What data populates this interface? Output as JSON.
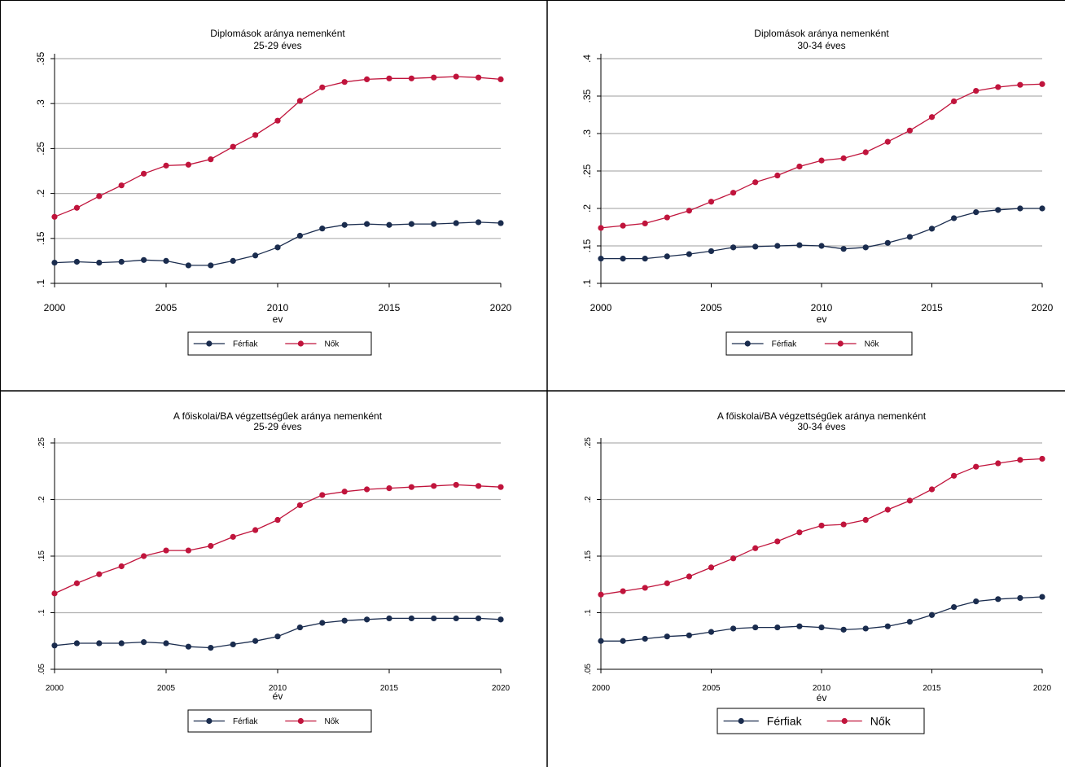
{
  "colors": {
    "men": "#1a2c4e",
    "women": "#c0143c",
    "grid": "#b0b0b0"
  },
  "chart_data": [
    {
      "type": "line",
      "title": "Diplomások aránya nemenként",
      "subtitle": "25-29 éves",
      "xlabel": "ev",
      "ylabel": "",
      "xlim": [
        2000,
        2020
      ],
      "ylim": [
        0.1,
        0.35
      ],
      "xticks": [
        2000,
        2005,
        2010,
        2015,
        2020
      ],
      "yticks": [
        0.1,
        0.15,
        0.2,
        0.25,
        0.3,
        0.35
      ],
      "ytick_labels": [
        ".1",
        ".15",
        ".2",
        ".25",
        ".3",
        ".35"
      ],
      "grid": true,
      "legend_position": "bottom",
      "x": [
        2000,
        2001,
        2002,
        2003,
        2004,
        2005,
        2006,
        2007,
        2008,
        2009,
        2010,
        2011,
        2012,
        2013,
        2014,
        2015,
        2016,
        2017,
        2018,
        2019,
        2020
      ],
      "series": [
        {
          "name": "Férfiak",
          "values": [
            0.123,
            0.124,
            0.123,
            0.124,
            0.126,
            0.125,
            0.12,
            0.12,
            0.125,
            0.131,
            0.14,
            0.153,
            0.161,
            0.165,
            0.166,
            0.165,
            0.166,
            0.166,
            0.167,
            0.168,
            0.167
          ]
        },
        {
          "name": "Nők",
          "values": [
            0.174,
            0.184,
            0.197,
            0.209,
            0.222,
            0.231,
            0.232,
            0.238,
            0.252,
            0.265,
            0.281,
            0.303,
            0.318,
            0.324,
            0.327,
            0.328,
            0.328,
            0.329,
            0.33,
            0.329,
            0.327
          ]
        }
      ]
    },
    {
      "type": "line",
      "title": "Diplomások aránya nemenként",
      "subtitle": "30-34 éves",
      "xlabel": "ev",
      "ylabel": "",
      "xlim": [
        2000,
        2020
      ],
      "ylim": [
        0.1,
        0.4
      ],
      "xticks": [
        2000,
        2005,
        2010,
        2015,
        2020
      ],
      "yticks": [
        0.1,
        0.15,
        0.2,
        0.25,
        0.3,
        0.35,
        0.4
      ],
      "ytick_labels": [
        ".1",
        ".15",
        ".2",
        ".25",
        ".3",
        ".35",
        ".4"
      ],
      "grid": true,
      "legend_position": "bottom",
      "x": [
        2000,
        2001,
        2002,
        2003,
        2004,
        2005,
        2006,
        2007,
        2008,
        2009,
        2010,
        2011,
        2012,
        2013,
        2014,
        2015,
        2016,
        2017,
        2018,
        2019,
        2020
      ],
      "series": [
        {
          "name": "Férfiak",
          "values": [
            0.133,
            0.133,
            0.133,
            0.136,
            0.139,
            0.143,
            0.148,
            0.149,
            0.15,
            0.151,
            0.15,
            0.146,
            0.148,
            0.154,
            0.162,
            0.173,
            0.187,
            0.195,
            0.198,
            0.2,
            0.2
          ]
        },
        {
          "name": "Nők",
          "values": [
            0.174,
            0.177,
            0.18,
            0.188,
            0.197,
            0.209,
            0.221,
            0.235,
            0.244,
            0.256,
            0.264,
            0.267,
            0.275,
            0.289,
            0.304,
            0.322,
            0.343,
            0.357,
            0.362,
            0.365,
            0.366
          ]
        }
      ]
    },
    {
      "type": "line",
      "title": "A főiskolai/BA végzettségűek aránya nemenként",
      "subtitle": "25-29 éves",
      "xlabel": "év",
      "ylabel": "",
      "xlim": [
        2000,
        2020
      ],
      "ylim": [
        0.05,
        0.25
      ],
      "xticks": [
        2000,
        2005,
        2010,
        2015,
        2020
      ],
      "yticks": [
        0.05,
        0.1,
        0.15,
        0.2,
        0.25
      ],
      "ytick_labels": [
        ".05",
        ".1",
        ".15",
        ".2",
        ".25"
      ],
      "grid": true,
      "legend_position": "bottom",
      "x": [
        2000,
        2001,
        2002,
        2003,
        2004,
        2005,
        2006,
        2007,
        2008,
        2009,
        2010,
        2011,
        2012,
        2013,
        2014,
        2015,
        2016,
        2017,
        2018,
        2019,
        2020
      ],
      "series": [
        {
          "name": "Férfiak",
          "values": [
            0.071,
            0.073,
            0.073,
            0.073,
            0.074,
            0.073,
            0.07,
            0.069,
            0.072,
            0.075,
            0.079,
            0.087,
            0.091,
            0.093,
            0.094,
            0.095,
            0.095,
            0.095,
            0.095,
            0.095,
            0.094
          ]
        },
        {
          "name": "Nők",
          "values": [
            0.117,
            0.126,
            0.134,
            0.141,
            0.15,
            0.155,
            0.155,
            0.159,
            0.167,
            0.173,
            0.182,
            0.195,
            0.204,
            0.207,
            0.209,
            0.21,
            0.211,
            0.212,
            0.213,
            0.212,
            0.211
          ]
        }
      ]
    },
    {
      "type": "line",
      "title": "A főiskolai/BA végzettségűek aránya nemenként",
      "subtitle": "30-34 éves",
      "xlabel": "év",
      "ylabel": "",
      "xlim": [
        2000,
        2020
      ],
      "ylim": [
        0.05,
        0.25
      ],
      "xticks": [
        2000,
        2005,
        2010,
        2015,
        2020
      ],
      "yticks": [
        0.05,
        0.1,
        0.15,
        0.2,
        0.25
      ],
      "ytick_labels": [
        ".05",
        ".1",
        ".15",
        ".2",
        ".25"
      ],
      "grid": true,
      "legend_position": "bottom",
      "x": [
        2000,
        2001,
        2002,
        2003,
        2004,
        2005,
        2006,
        2007,
        2008,
        2009,
        2010,
        2011,
        2012,
        2013,
        2014,
        2015,
        2016,
        2017,
        2018,
        2019,
        2020
      ],
      "series": [
        {
          "name": "Férfiak",
          "values": [
            0.075,
            0.075,
            0.077,
            0.079,
            0.08,
            0.083,
            0.086,
            0.087,
            0.087,
            0.088,
            0.087,
            0.085,
            0.086,
            0.088,
            0.092,
            0.098,
            0.105,
            0.11,
            0.112,
            0.113,
            0.114
          ]
        },
        {
          "name": "Nők",
          "values": [
            0.116,
            0.119,
            0.122,
            0.126,
            0.132,
            0.14,
            0.148,
            0.157,
            0.163,
            0.171,
            0.177,
            0.178,
            0.182,
            0.191,
            0.199,
            0.209,
            0.221,
            0.229,
            0.232,
            0.235,
            0.236
          ]
        }
      ]
    }
  ]
}
